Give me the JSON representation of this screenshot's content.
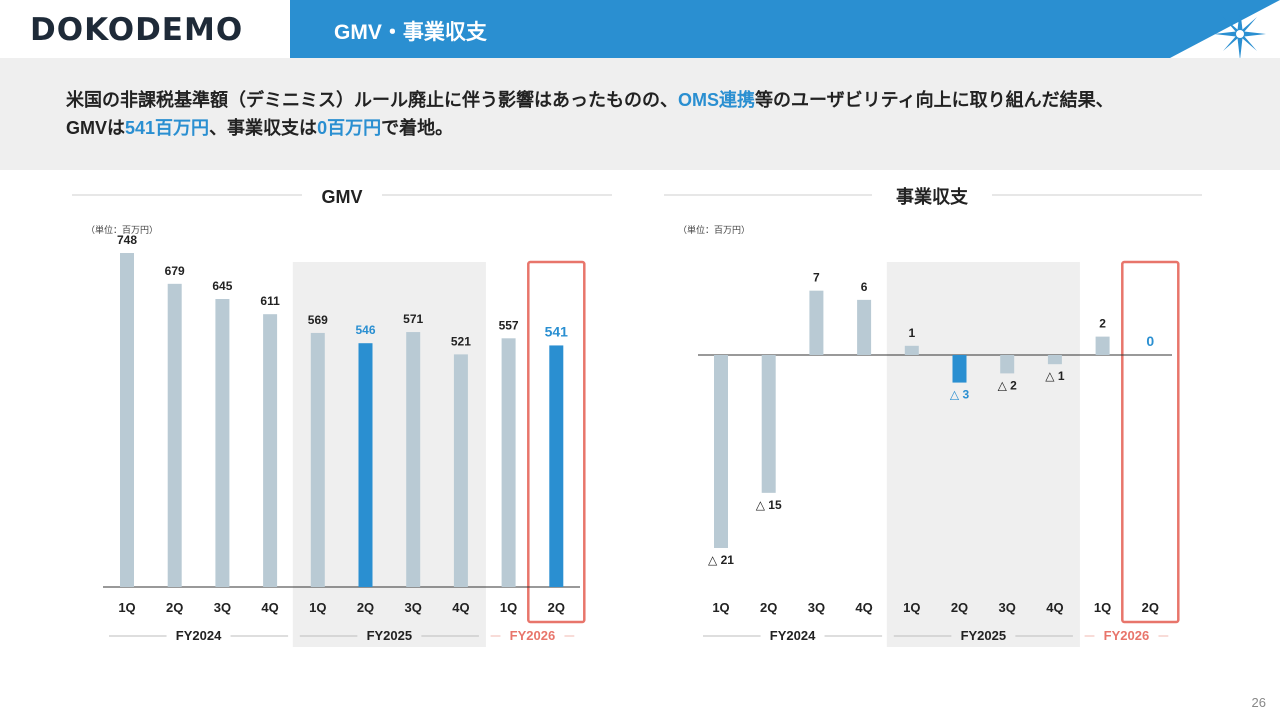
{
  "header": {
    "logo": "DOKODEMO",
    "title": "GMV・事業収支"
  },
  "summary": {
    "line1_a": "米国の非課税基準額（デミニミス）ルール廃止に伴う影響はあったものの、",
    "line1_hl": "OMS連携",
    "line1_b": "等のユーザビリティ向上に取り組んだ結果、",
    "line2_a": "GMVは",
    "line2_hl1": "541百万円",
    "line2_b": "、事業収支は",
    "line2_hl2": "0百万円",
    "line2_c": "で着地。"
  },
  "page_number": "26",
  "colors": {
    "accent": "#2a8fd1",
    "bar": "#b9cad4",
    "highlight_frame": "#e8756b",
    "shade": "#efefef",
    "title_bar": "#2a8fd1"
  },
  "chart_data": [
    {
      "type": "bar",
      "title": "GMV",
      "unit": "（単位：百万円）",
      "categories": [
        "1Q",
        "2Q",
        "3Q",
        "4Q",
        "1Q",
        "2Q",
        "3Q",
        "4Q",
        "1Q",
        "2Q"
      ],
      "values": [
        748,
        679,
        645,
        611,
        569,
        546,
        571,
        521,
        557,
        541
      ],
      "value_labels": [
        "748",
        "679",
        "645",
        "611",
        "569",
        "546",
        "571",
        "521",
        "557",
        "541"
      ],
      "highlight_indices": [
        5,
        9
      ],
      "groups": [
        {
          "label": "FY2024",
          "start": 0,
          "end": 3,
          "shaded": false,
          "framed": false
        },
        {
          "label": "FY2025",
          "start": 4,
          "end": 7,
          "shaded": true,
          "framed": false
        },
        {
          "label": "FY2026",
          "start": 8,
          "end": 9,
          "shaded": false,
          "framed": true
        }
      ],
      "ylim": [
        0,
        800
      ]
    },
    {
      "type": "bar",
      "title": "事業収支",
      "unit": "（単位：百万円）",
      "categories": [
        "1Q",
        "2Q",
        "3Q",
        "4Q",
        "1Q",
        "2Q",
        "3Q",
        "4Q",
        "1Q",
        "2Q"
      ],
      "values": [
        -21,
        -15,
        7,
        6,
        1,
        -3,
        -2,
        -1,
        2,
        0
      ],
      "value_labels": [
        "△ 21",
        "△ 15",
        "7",
        "6",
        "1",
        "△ 3",
        "△ 2",
        "△ 1",
        "2",
        "0"
      ],
      "highlight_indices": [
        5,
        9
      ],
      "groups": [
        {
          "label": "FY2024",
          "start": 0,
          "end": 3,
          "shaded": false,
          "framed": false
        },
        {
          "label": "FY2025",
          "start": 4,
          "end": 7,
          "shaded": true,
          "framed": false
        },
        {
          "label": "FY2026",
          "start": 8,
          "end": 9,
          "shaded": false,
          "framed": true
        }
      ],
      "ylim": [
        -22,
        8
      ]
    }
  ]
}
